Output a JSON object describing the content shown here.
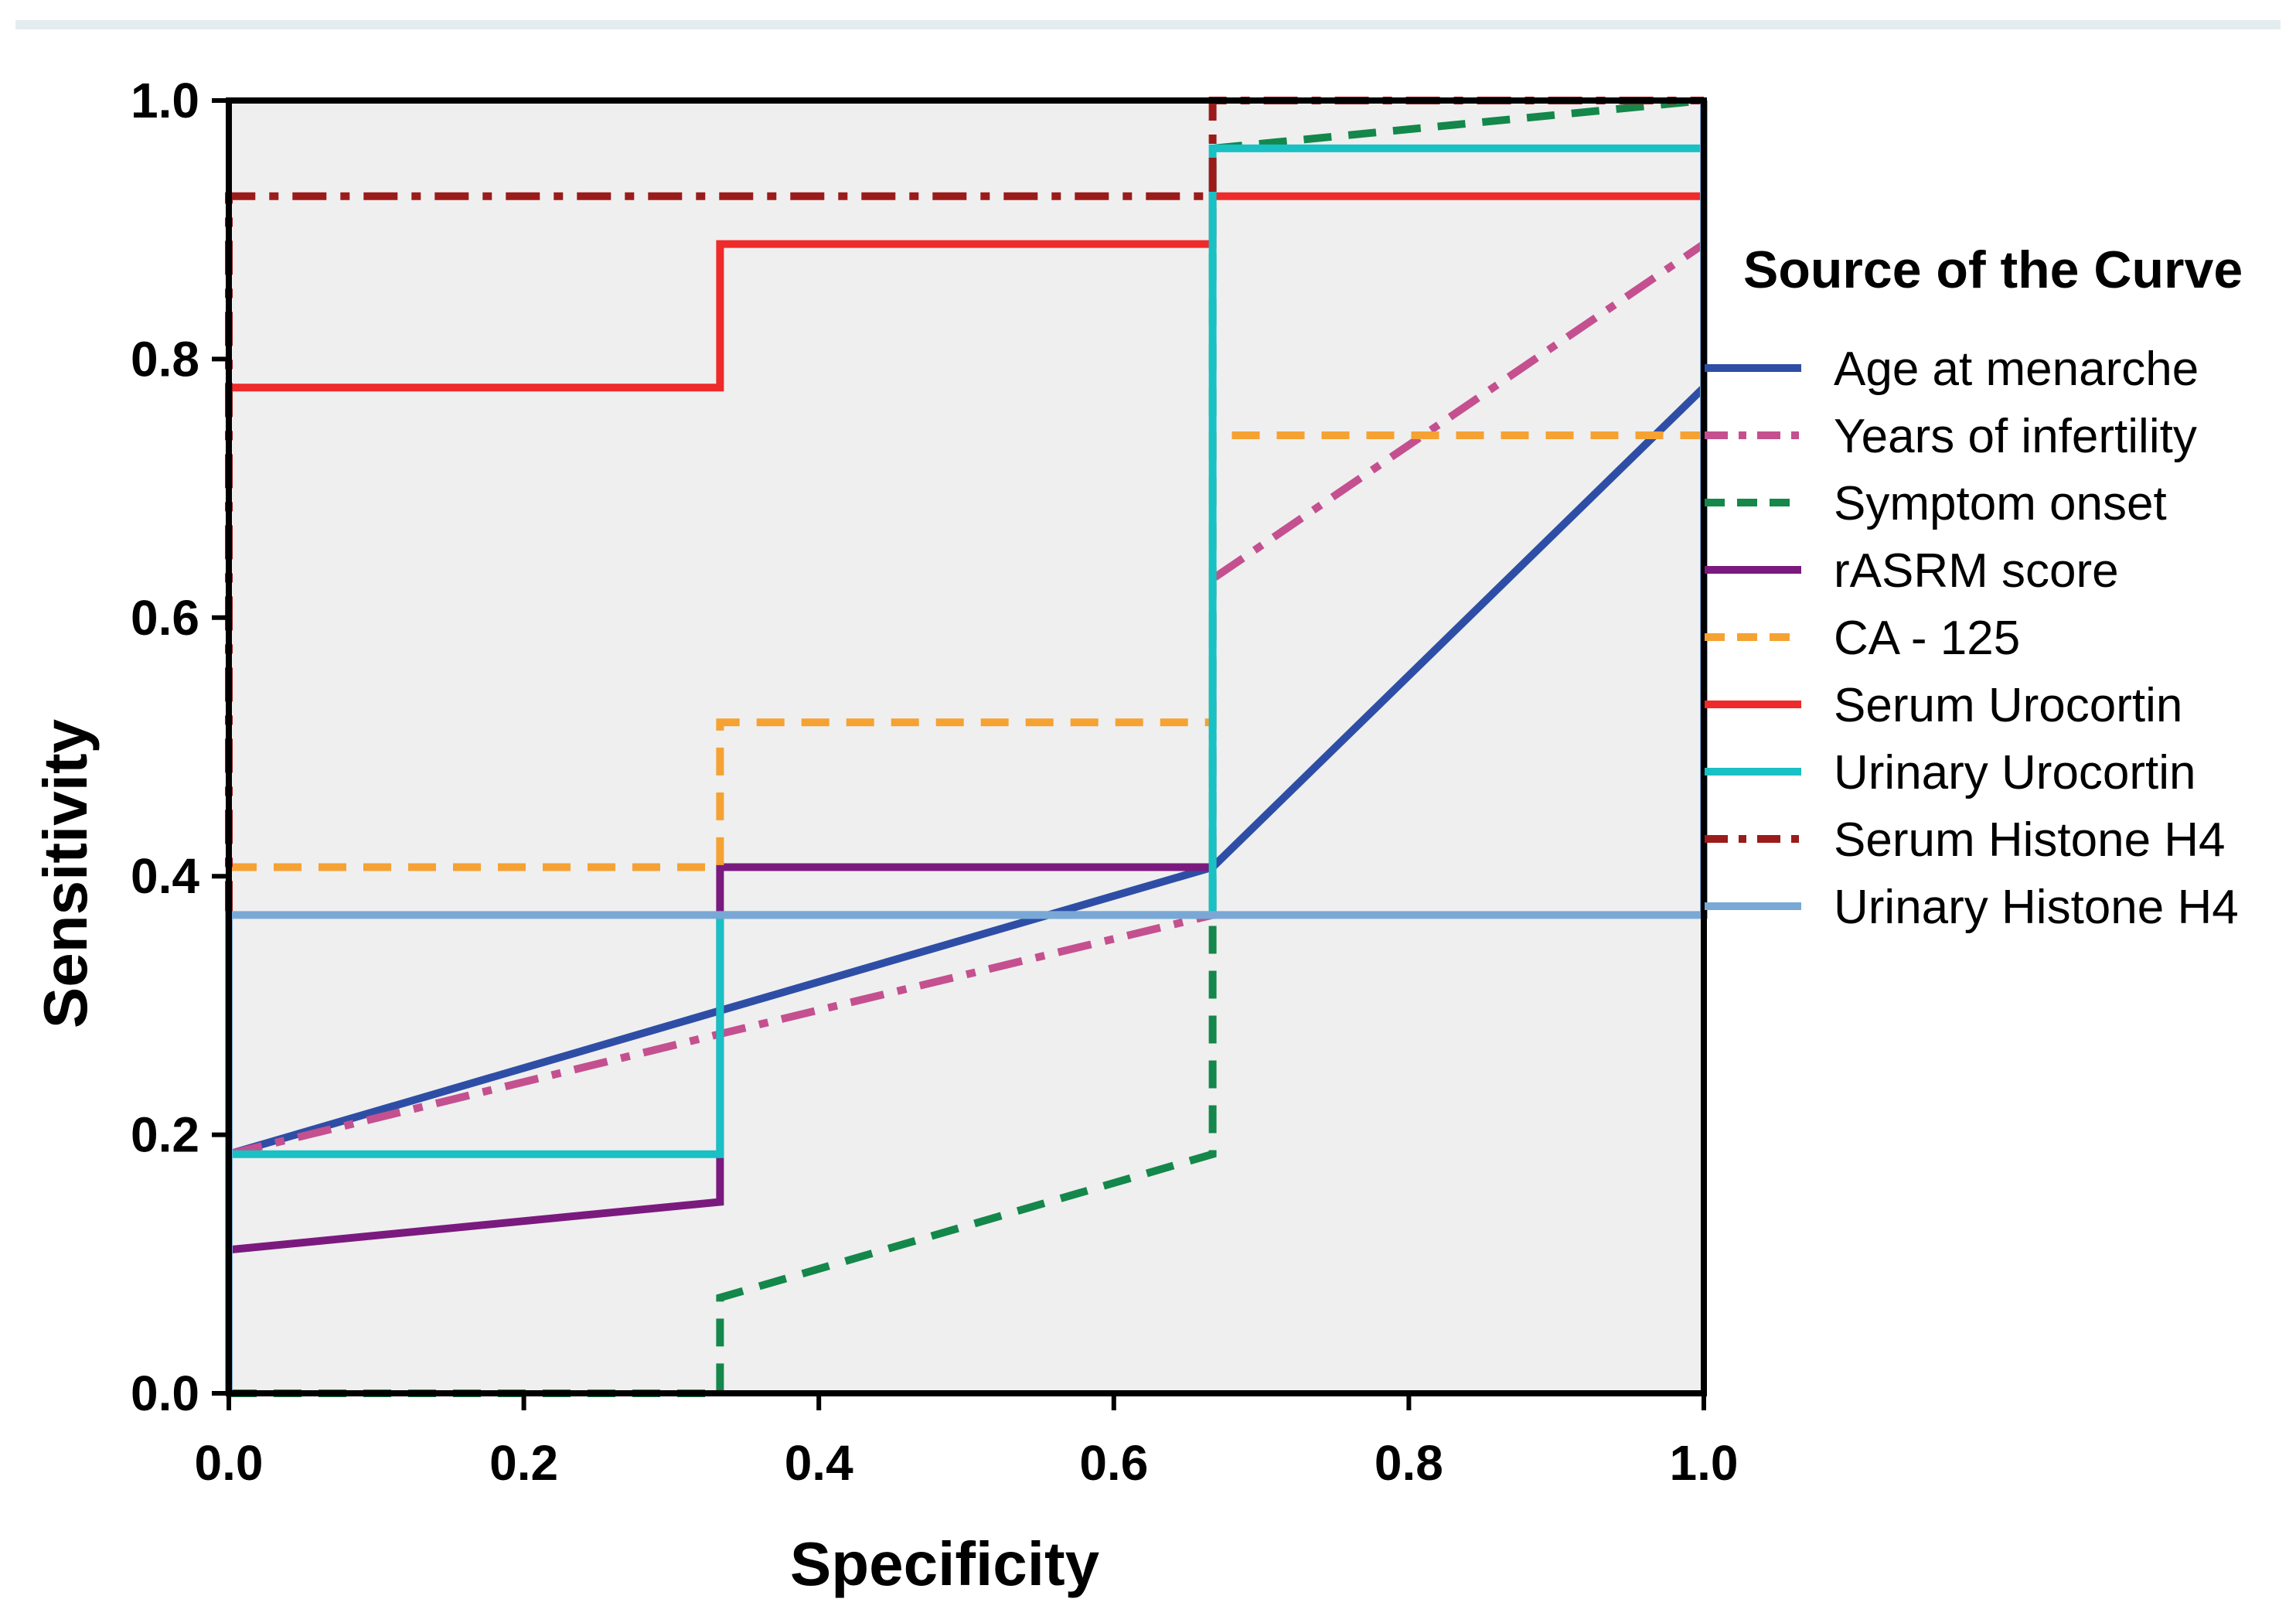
{
  "chart_data": {
    "type": "line",
    "title": "",
    "xlabel": "Specificity",
    "ylabel": "Sensitivity",
    "xlim": [
      0,
      1
    ],
    "ylim": [
      0,
      1
    ],
    "xticks": [
      "0.0",
      "0.2",
      "0.4",
      "0.6",
      "0.8",
      "1.0"
    ],
    "yticks": [
      "0.0",
      "0.2",
      "0.4",
      "0.6",
      "0.8",
      "1.0"
    ],
    "grid": false,
    "legend_title": "Source of the Curve",
    "legend_position": "right",
    "series": [
      {
        "name": "Age at menarche",
        "color": "#2e4ea6",
        "style": "solid",
        "points": [
          [
            0,
            0.185
          ],
          [
            0.333,
            0.296
          ],
          [
            0.667,
            0.407
          ],
          [
            1.0,
            0.778
          ]
        ]
      },
      {
        "name": "Years of infertility",
        "color": "#c4508f",
        "style": "dashdot",
        "points": [
          [
            0,
            0.185
          ],
          [
            0.333,
            0.278
          ],
          [
            0.667,
            0.37
          ],
          [
            0.667,
            0.63
          ],
          [
            1.0,
            0.889
          ]
        ]
      },
      {
        "name": "Symptom onset",
        "color": "#14874a",
        "style": "dashed",
        "points": [
          [
            0,
            0.0
          ],
          [
            0.333,
            0.0
          ],
          [
            0.333,
            0.074
          ],
          [
            0.667,
            0.185
          ],
          [
            0.667,
            0.963
          ],
          [
            1.0,
            1.0
          ]
        ]
      },
      {
        "name": "rASRM score",
        "color": "#7a1a7e",
        "style": "solid",
        "points": [
          [
            0,
            0.111
          ],
          [
            0.333,
            0.148
          ],
          [
            0.333,
            0.407
          ],
          [
            0.667,
            0.407
          ]
        ]
      },
      {
        "name": "CA - 125",
        "color": "#f5a233",
        "style": "dashed",
        "points": [
          [
            0,
            0.407
          ],
          [
            0.333,
            0.407
          ],
          [
            0.333,
            0.519
          ],
          [
            0.667,
            0.519
          ],
          [
            0.667,
            0.741
          ],
          [
            1.0,
            0.741
          ]
        ]
      },
      {
        "name": "Serum Urocortin",
        "color": "#ee2a2a",
        "style": "solid",
        "points": [
          [
            0,
            0.778
          ],
          [
            0.333,
            0.778
          ],
          [
            0.333,
            0.889
          ],
          [
            0.667,
            0.889
          ],
          [
            0.667,
            0.926
          ],
          [
            1.0,
            0.926
          ]
        ]
      },
      {
        "name": "Urinary Urocortin",
        "color": "#19c0c4",
        "style": "solid",
        "points": [
          [
            0,
            0.185
          ],
          [
            0.333,
            0.185
          ],
          [
            0.333,
            0.37
          ],
          [
            0.667,
            0.37
          ],
          [
            0.667,
            0.963
          ],
          [
            1.0,
            0.963
          ]
        ]
      },
      {
        "name": "Serum Histone H4",
        "color": "#9b1b1b",
        "style": "dashdot",
        "points": [
          [
            0,
            0.37
          ],
          [
            0,
            0.926
          ],
          [
            0.667,
            0.926
          ],
          [
            0.667,
            1.0
          ],
          [
            1.0,
            1.0
          ]
        ]
      },
      {
        "name": "Urinary Histone H4",
        "color": "#7aa8d6",
        "style": "solid",
        "points": [
          [
            0,
            0.0
          ],
          [
            0,
            0.37
          ],
          [
            1.0,
            0.37
          ],
          [
            1.0,
            1.0
          ]
        ]
      }
    ]
  }
}
